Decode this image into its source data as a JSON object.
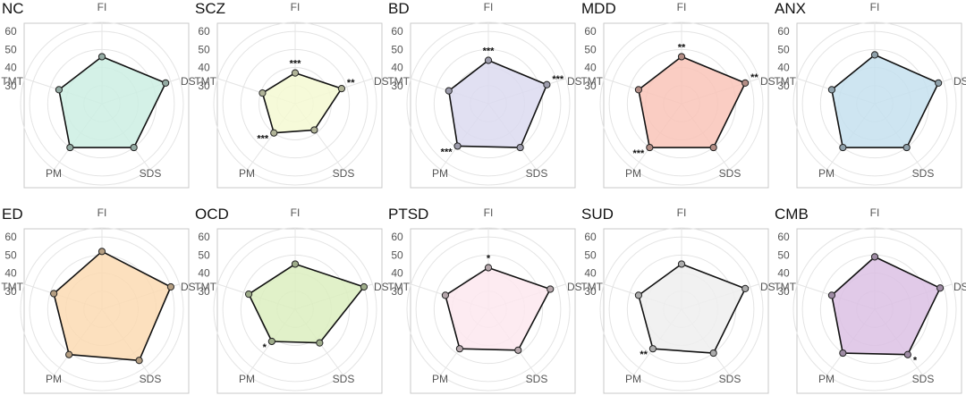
{
  "chart_data": {
    "type": "radar",
    "axes": [
      "FI",
      "DS",
      "SDS",
      "PM",
      "TMT"
    ],
    "radial_ticks": [
      "30",
      "40",
      "50",
      "60"
    ],
    "rlim": [
      20,
      65
    ],
    "grid": true,
    "panels": [
      {
        "title": "NC",
        "color": "#cdeee3",
        "values": [
          46,
          57,
          50,
          50,
          45
        ],
        "stars": [
          "",
          "",
          "",
          "",
          ""
        ]
      },
      {
        "title": "SCZ",
        "color": "#f5f9d2",
        "values": [
          37,
          47,
          38,
          40,
          39
        ],
        "stars": [
          "***",
          "**",
          "",
          "***",
          ""
        ]
      },
      {
        "title": "BD",
        "color": "#dcdaf0",
        "values": [
          44,
          54,
          50,
          49,
          43
        ],
        "stars": [
          "***",
          "***",
          "",
          "***",
          ""
        ]
      },
      {
        "title": "MDD",
        "color": "#f9c4b9",
        "values": [
          46,
          57,
          50,
          50,
          45
        ],
        "stars": [
          "**",
          "**",
          "",
          "***",
          ""
        ]
      },
      {
        "title": "ANX",
        "color": "#c6e0ee",
        "values": [
          47,
          57,
          50,
          50,
          45
        ],
        "stars": [
          "",
          "",
          "",
          "",
          ""
        ]
      },
      {
        "title": "ED",
        "color": "#fbdbb3",
        "values": [
          52,
          60,
          55,
          51,
          48
        ],
        "stars": [
          "",
          "",
          "",
          "",
          ""
        ]
      },
      {
        "title": "OCD",
        "color": "#dcefbf",
        "values": [
          45,
          60,
          43,
          42,
          47
        ],
        "stars": [
          "",
          "",
          "",
          "*",
          ""
        ]
      },
      {
        "title": "PTSD",
        "color": "#fde8ef",
        "values": [
          43,
          56,
          48,
          47,
          45
        ],
        "stars": [
          "*",
          "",
          "",
          "",
          ""
        ]
      },
      {
        "title": "SUD",
        "color": "#efefef",
        "values": [
          45,
          57,
          50,
          47,
          45
        ],
        "stars": [
          "",
          "",
          "",
          "**",
          ""
        ]
      },
      {
        "title": "CMB",
        "color": "#dcc1e4",
        "values": [
          49,
          58,
          51,
          50,
          45
        ],
        "stars": [
          "",
          "",
          "*",
          "",
          ""
        ]
      }
    ]
  }
}
